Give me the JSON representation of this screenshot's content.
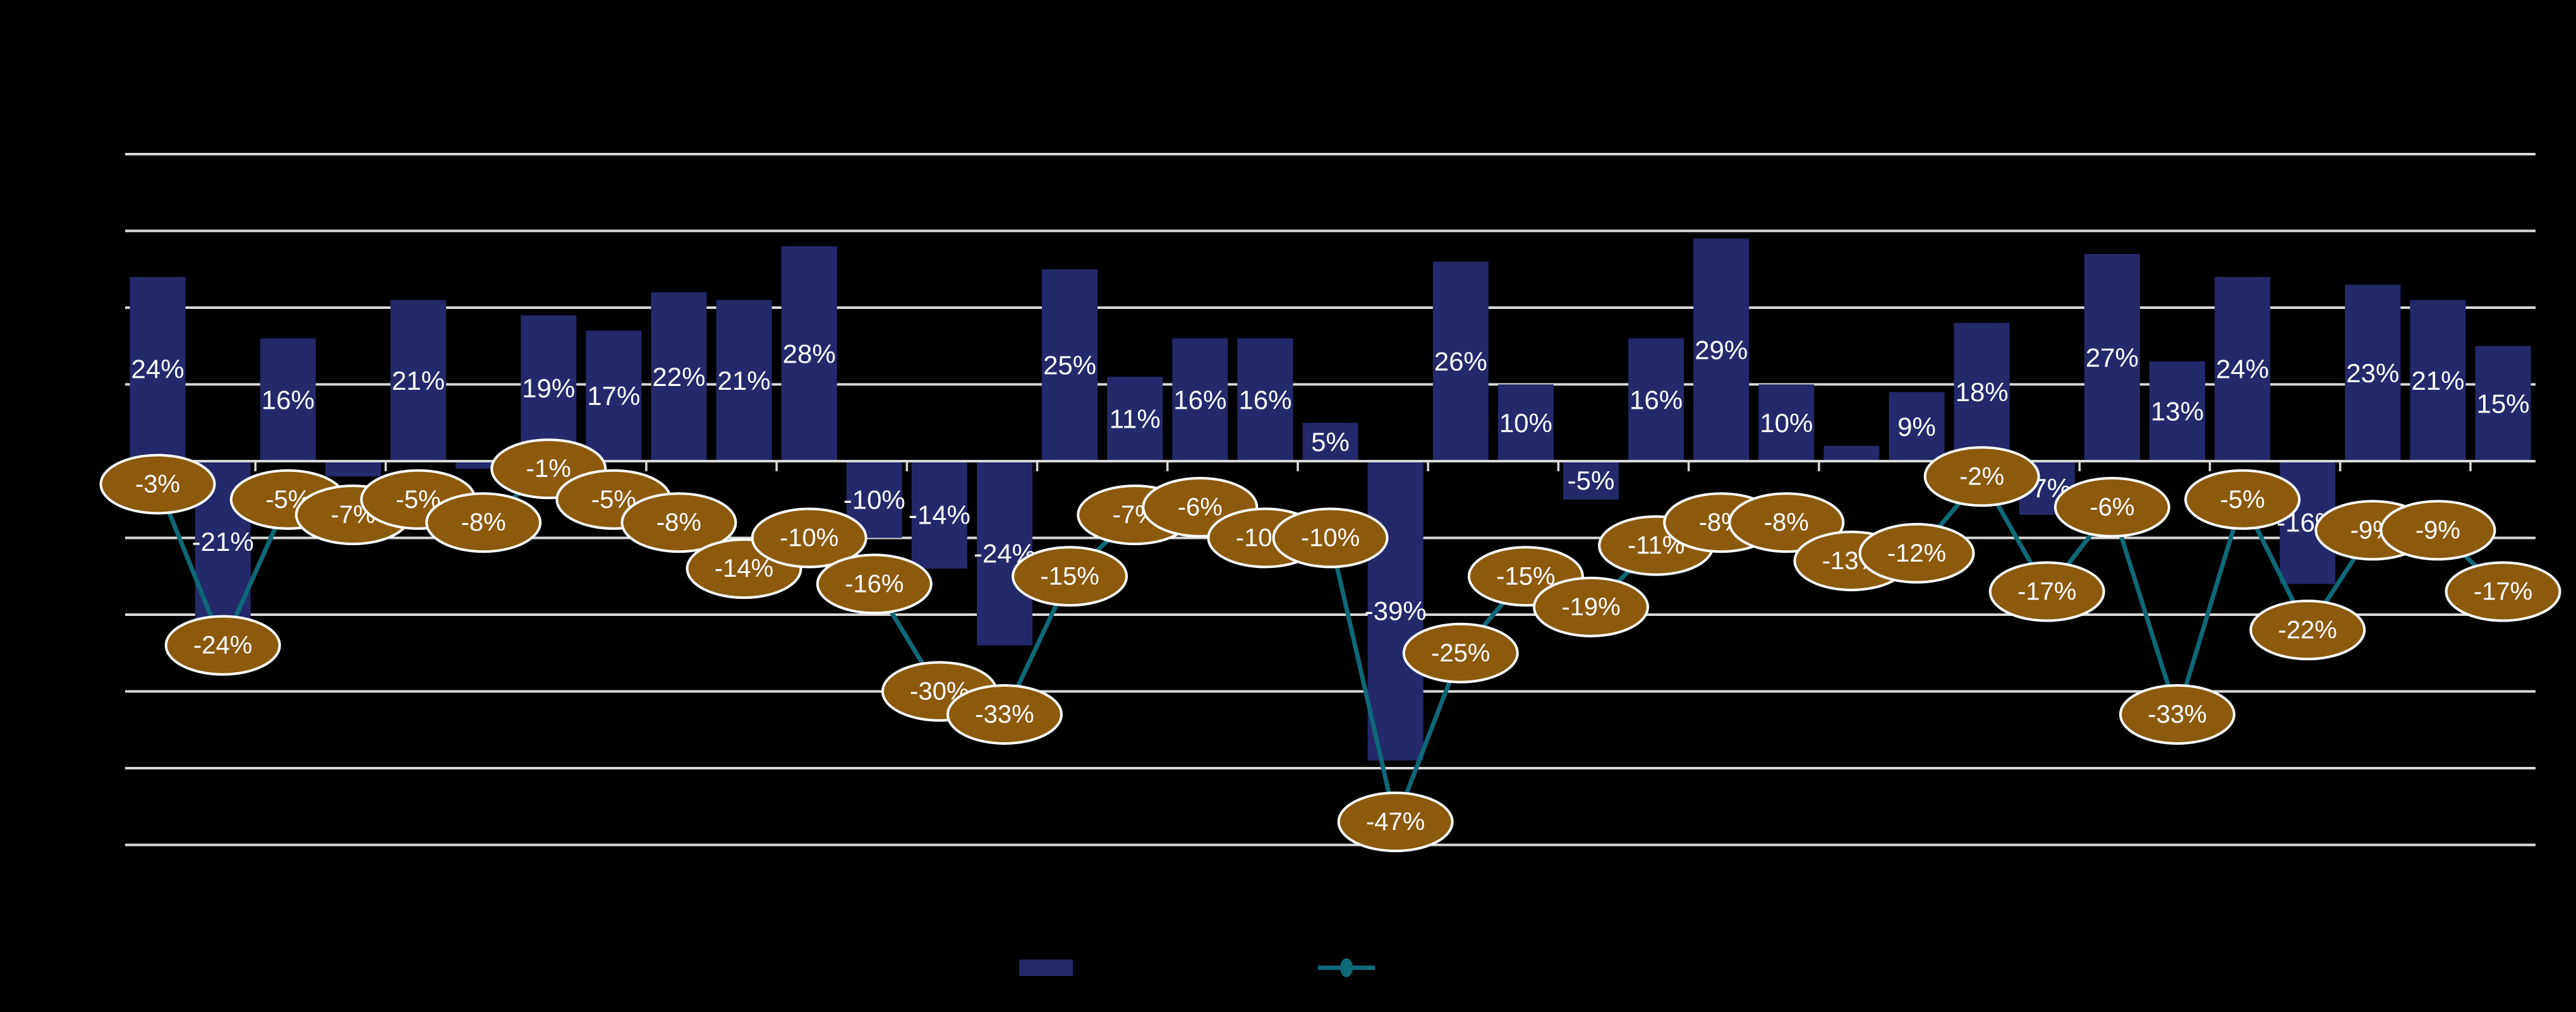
{
  "figure": {
    "background": "#000000",
    "label_color": "#ffffff"
  },
  "chart_data": {
    "type": "combo",
    "subtype": "bar+line-with-labeled-point-bubbles",
    "category_count": 37,
    "x_tick_labels_visible": false,
    "axis": {
      "ylim": [
        -50,
        40
      ],
      "grid_values": [
        40,
        30,
        20,
        10,
        0,
        -10,
        -20,
        -30,
        -40,
        -50
      ],
      "grid_on": true,
      "grid_color": "#d9d9d9",
      "axis_color": "#d9d9d9",
      "y_tick_labels_visible": false
    },
    "series": [
      {
        "name": "bars",
        "type": "bar",
        "color": "#24296b",
        "values": [
          24,
          -21,
          16,
          -2,
          21,
          -1,
          19,
          17,
          22,
          21,
          28,
          -10,
          -14,
          -24,
          25,
          11,
          16,
          16,
          5,
          -39,
          26,
          10,
          -5,
          16,
          29,
          10,
          2,
          9,
          18,
          -7,
          27,
          13,
          24,
          -16,
          23,
          21,
          15
        ],
        "labels": [
          "24%",
          "-21%",
          "16%",
          null,
          "21%",
          null,
          "19%",
          "17%",
          "22%",
          "21%",
          "28%",
          "-10%",
          "-14%",
          "-24%",
          "25%",
          "11%",
          "16%",
          "16%",
          "5%",
          "-39%",
          "26%",
          "10%",
          "-5%",
          "16%",
          "29%",
          "10%",
          null,
          "9%",
          "18%",
          "-7%",
          "27%",
          "13%",
          "24%",
          "-16%",
          "23%",
          "21%",
          "15%"
        ]
      },
      {
        "name": "line",
        "type": "line",
        "color": "#0f6878",
        "point_bubble_fill": "#8b5a0d",
        "point_bubble_border": "#ffffff",
        "values": [
          -3,
          -24,
          -5,
          -7,
          -5,
          -8,
          -1,
          -5,
          -8,
          -14,
          -10,
          -16,
          -30,
          -33,
          -15,
          -7,
          -6,
          -10,
          -10,
          -47,
          -25,
          -15,
          -19,
          -11,
          -8,
          -8,
          -13,
          -12,
          -2,
          -17,
          -6,
          -33,
          -5,
          -22,
          -9,
          -9,
          -17
        ],
        "labels": [
          "-3%",
          "-24%",
          "-5%",
          "-7%",
          "-5%",
          "-8%",
          "-1%",
          "-5%",
          "-8%",
          "-14%",
          "-10%",
          "-16%",
          "-30%",
          "-33%",
          "-15%",
          "-7%",
          "-6%",
          "-10%",
          "-10%",
          "-47%",
          "-25%",
          "-15%",
          "-19%",
          "-11%",
          "-8%",
          "-8%",
          "-13%",
          "-12%",
          "-2%",
          "-17%",
          "-6%",
          "-33%",
          "-5%",
          "-22%",
          "-9%",
          "-9%",
          "-17%"
        ]
      }
    ],
    "legend": {
      "position": "bottom-center",
      "labels_visible": false,
      "entries": [
        {
          "marker": "bar-swatch",
          "color": "#24296b"
        },
        {
          "marker": "line-with-dot",
          "color": "#0f6878"
        }
      ]
    }
  }
}
